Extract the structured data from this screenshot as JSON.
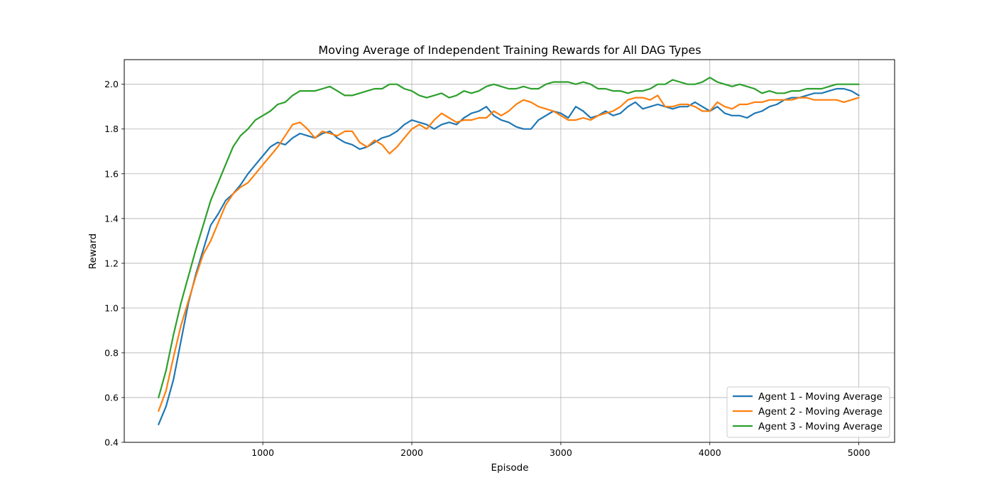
{
  "chart_data": {
    "type": "line",
    "title": "Moving Average of Independent Training Rewards for All DAG Types",
    "xlabel": "Episode",
    "ylabel": "Reward",
    "xlim": [
      70,
      5240
    ],
    "ylim": [
      0.4,
      2.11
    ],
    "xticks": [
      1000,
      2000,
      3000,
      4000,
      5000
    ],
    "yticks": [
      0.4,
      0.6,
      0.8,
      1.0,
      1.2,
      1.4,
      1.6,
      1.8,
      2.0
    ],
    "ytick_labels": [
      "0.4",
      "0.6",
      "0.8",
      "1.0",
      "1.2",
      "1.4",
      "1.6",
      "1.8",
      "2.0"
    ],
    "grid": true,
    "legend_position": "bottom-right",
    "x": [
      300,
      350,
      400,
      450,
      500,
      550,
      600,
      650,
      700,
      750,
      800,
      850,
      900,
      950,
      1000,
      1050,
      1100,
      1150,
      1200,
      1250,
      1300,
      1350,
      1400,
      1450,
      1500,
      1550,
      1600,
      1650,
      1700,
      1750,
      1800,
      1850,
      1900,
      1950,
      2000,
      2050,
      2100,
      2150,
      2200,
      2250,
      2300,
      2350,
      2400,
      2450,
      2500,
      2550,
      2600,
      2650,
      2700,
      2750,
      2800,
      2850,
      2900,
      2950,
      3000,
      3050,
      3100,
      3150,
      3200,
      3250,
      3300,
      3350,
      3400,
      3450,
      3500,
      3550,
      3600,
      3650,
      3700,
      3750,
      3800,
      3850,
      3900,
      3950,
      4000,
      4050,
      4100,
      4150,
      4200,
      4250,
      4300,
      4350,
      4400,
      4450,
      4500,
      4550,
      4600,
      4650,
      4700,
      4750,
      4800,
      4850,
      4900,
      4950,
      5000
    ],
    "series": [
      {
        "name": "Agent 1 - Moving Average",
        "color": "#1f77b4",
        "values": [
          0.48,
          0.56,
          0.68,
          0.85,
          1.02,
          1.15,
          1.26,
          1.37,
          1.42,
          1.48,
          1.51,
          1.55,
          1.6,
          1.64,
          1.68,
          1.72,
          1.74,
          1.73,
          1.76,
          1.78,
          1.77,
          1.76,
          1.78,
          1.79,
          1.76,
          1.74,
          1.73,
          1.71,
          1.72,
          1.74,
          1.76,
          1.77,
          1.79,
          1.82,
          1.84,
          1.83,
          1.82,
          1.8,
          1.82,
          1.83,
          1.82,
          1.85,
          1.87,
          1.88,
          1.9,
          1.86,
          1.84,
          1.83,
          1.81,
          1.8,
          1.8,
          1.84,
          1.86,
          1.88,
          1.87,
          1.85,
          1.9,
          1.88,
          1.85,
          1.86,
          1.88,
          1.86,
          1.87,
          1.9,
          1.92,
          1.89,
          1.9,
          1.91,
          1.9,
          1.89,
          1.9,
          1.9,
          1.92,
          1.9,
          1.88,
          1.9,
          1.87,
          1.86,
          1.86,
          1.85,
          1.87,
          1.88,
          1.9,
          1.91,
          1.93,
          1.94,
          1.94,
          1.95,
          1.96,
          1.96,
          1.97,
          1.98,
          1.98,
          1.97,
          1.95
        ]
      },
      {
        "name": "Agent 2 - Moving Average",
        "color": "#ff7f0e",
        "values": [
          0.54,
          0.63,
          0.78,
          0.92,
          1.03,
          1.14,
          1.24,
          1.3,
          1.38,
          1.46,
          1.51,
          1.54,
          1.56,
          1.6,
          1.64,
          1.68,
          1.72,
          1.77,
          1.82,
          1.83,
          1.8,
          1.76,
          1.79,
          1.78,
          1.77,
          1.79,
          1.79,
          1.74,
          1.72,
          1.75,
          1.73,
          1.69,
          1.72,
          1.76,
          1.8,
          1.82,
          1.8,
          1.84,
          1.87,
          1.85,
          1.83,
          1.84,
          1.84,
          1.85,
          1.85,
          1.88,
          1.86,
          1.88,
          1.91,
          1.93,
          1.92,
          1.9,
          1.89,
          1.88,
          1.86,
          1.84,
          1.84,
          1.85,
          1.84,
          1.86,
          1.87,
          1.88,
          1.9,
          1.93,
          1.94,
          1.94,
          1.93,
          1.95,
          1.9,
          1.9,
          1.91,
          1.91,
          1.9,
          1.88,
          1.88,
          1.92,
          1.9,
          1.89,
          1.91,
          1.91,
          1.92,
          1.92,
          1.93,
          1.93,
          1.93,
          1.93,
          1.94,
          1.94,
          1.93,
          1.93,
          1.93,
          1.93,
          1.92,
          1.93,
          1.94
        ]
      },
      {
        "name": "Agent 3 - Moving Average",
        "color": "#2ca02c",
        "values": [
          0.6,
          0.72,
          0.88,
          1.02,
          1.14,
          1.26,
          1.37,
          1.48,
          1.56,
          1.64,
          1.72,
          1.77,
          1.8,
          1.84,
          1.86,
          1.88,
          1.91,
          1.92,
          1.95,
          1.97,
          1.97,
          1.97,
          1.98,
          1.99,
          1.97,
          1.95,
          1.95,
          1.96,
          1.97,
          1.98,
          1.98,
          2.0,
          2.0,
          1.98,
          1.97,
          1.95,
          1.94,
          1.95,
          1.96,
          1.94,
          1.95,
          1.97,
          1.96,
          1.97,
          1.99,
          2.0,
          1.99,
          1.98,
          1.98,
          1.99,
          1.98,
          1.98,
          2.0,
          2.01,
          2.01,
          2.01,
          2.0,
          2.01,
          2.0,
          1.98,
          1.98,
          1.97,
          1.97,
          1.96,
          1.97,
          1.97,
          1.98,
          2.0,
          2.0,
          2.02,
          2.01,
          2.0,
          2.0,
          2.01,
          2.03,
          2.01,
          2.0,
          1.99,
          2.0,
          1.99,
          1.98,
          1.96,
          1.97,
          1.96,
          1.96,
          1.97,
          1.97,
          1.98,
          1.98,
          1.98,
          1.99,
          2.0,
          2.0,
          2.0,
          2.0
        ]
      }
    ]
  }
}
